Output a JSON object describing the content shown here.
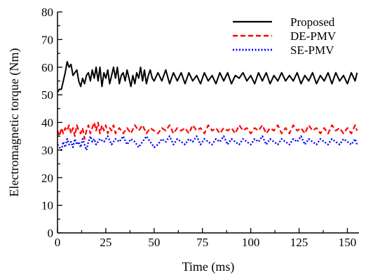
{
  "chart_data": {
    "type": "line",
    "title": "",
    "xlabel": "Time (ms)",
    "ylabel": "Electromagnetic torque (Nm)",
    "xlim": [
      0,
      156
    ],
    "ylim": [
      0,
      80
    ],
    "x_ticks": [
      "0",
      "25",
      "50",
      "75",
      "100",
      "125",
      "150"
    ],
    "y_ticks": [
      "0",
      "10",
      "20",
      "30",
      "40",
      "50",
      "60",
      "70",
      "80"
    ],
    "grid": false,
    "legend_position": "top-right",
    "series": [
      {
        "name": "Proposed",
        "color": "#000000",
        "line_style": "solid",
        "x": [
          0,
          1,
          2,
          3,
          4,
          5,
          6,
          7,
          8,
          9,
          10,
          11,
          12,
          13,
          14,
          15,
          16,
          17,
          18,
          19,
          20,
          21,
          22,
          23,
          24,
          25,
          26,
          27,
          28,
          29,
          30,
          31,
          32,
          33,
          34,
          35,
          36,
          37,
          38,
          39,
          40,
          41,
          42,
          43,
          44,
          45,
          46,
          47,
          48,
          49,
          50,
          52,
          54,
          56,
          58,
          60,
          62,
          64,
          66,
          68,
          70,
          72,
          74,
          76,
          78,
          80,
          82,
          84,
          86,
          88,
          90,
          92,
          94,
          96,
          98,
          100,
          102,
          104,
          106,
          108,
          110,
          112,
          114,
          116,
          118,
          120,
          122,
          124,
          126,
          128,
          130,
          132,
          134,
          136,
          138,
          140,
          142,
          144,
          146,
          148,
          150,
          152,
          154,
          155
        ],
        "y": [
          51,
          52,
          52,
          55,
          58,
          62,
          60,
          61,
          57,
          58,
          59,
          55,
          53,
          56,
          54,
          57,
          58,
          55,
          59,
          56,
          60,
          55,
          60,
          53,
          58,
          56,
          59,
          54,
          57,
          60,
          56,
          60,
          54,
          57,
          58,
          55,
          59,
          56,
          53,
          57,
          54,
          58,
          56,
          60,
          55,
          59,
          54,
          57,
          59,
          56,
          55,
          58,
          55,
          59,
          54,
          58,
          55,
          58,
          54,
          58,
          55,
          57,
          54,
          58,
          55,
          57,
          54,
          58,
          55,
          58,
          54,
          57,
          56,
          58,
          55,
          57,
          54,
          58,
          55,
          58,
          54,
          57,
          55,
          58,
          55,
          57,
          55,
          58,
          54,
          57,
          55,
          58,
          54,
          57,
          55,
          58,
          54,
          58,
          55,
          57,
          54,
          58,
          55,
          58
        ]
      },
      {
        "name": "DE-PMV",
        "color": "#ff0000",
        "line_style": "dashed",
        "x": [
          0,
          1,
          2,
          3,
          4,
          5,
          6,
          7,
          8,
          9,
          10,
          11,
          12,
          13,
          14,
          15,
          16,
          17,
          18,
          19,
          20,
          21,
          22,
          23,
          24,
          25,
          26,
          27,
          28,
          29,
          30,
          32,
          34,
          36,
          38,
          40,
          42,
          44,
          46,
          48,
          50,
          52,
          54,
          56,
          58,
          60,
          62,
          64,
          66,
          68,
          70,
          72,
          74,
          76,
          78,
          80,
          82,
          84,
          86,
          88,
          90,
          92,
          94,
          96,
          98,
          100,
          102,
          104,
          106,
          108,
          110,
          112,
          114,
          116,
          118,
          120,
          122,
          124,
          126,
          128,
          130,
          132,
          134,
          136,
          138,
          140,
          142,
          144,
          146,
          148,
          150,
          152,
          154,
          155
        ],
        "y": [
          37,
          35,
          38,
          36,
          38,
          37,
          39,
          36,
          38,
          35,
          39,
          37,
          36,
          38,
          34,
          37,
          39,
          36,
          38,
          40,
          37,
          40,
          36,
          39,
          37,
          39,
          36,
          38,
          37,
          39,
          36,
          38,
          36,
          38,
          36,
          39,
          37,
          39,
          36,
          38,
          37,
          36,
          38,
          37,
          39,
          36,
          38,
          37,
          38,
          36,
          39,
          37,
          38,
          36,
          39,
          37,
          38,
          36,
          38,
          37,
          38,
          36,
          39,
          37,
          38,
          36,
          38,
          37,
          39,
          36,
          38,
          37,
          39,
          36,
          38,
          36,
          39,
          37,
          38,
          36,
          39,
          37,
          38,
          36,
          38,
          36,
          39,
          37,
          38,
          36,
          38,
          36,
          39,
          37
        ]
      },
      {
        "name": "SE-PMV",
        "color": "#0000ff",
        "line_style": "dotted",
        "x": [
          0,
          1,
          2,
          3,
          4,
          5,
          6,
          7,
          8,
          9,
          10,
          11,
          12,
          13,
          14,
          15,
          16,
          17,
          18,
          19,
          20,
          22,
          24,
          26,
          28,
          30,
          32,
          34,
          36,
          38,
          40,
          42,
          44,
          46,
          48,
          50,
          52,
          54,
          56,
          58,
          60,
          62,
          64,
          66,
          68,
          70,
          72,
          74,
          76,
          78,
          80,
          82,
          84,
          86,
          88,
          90,
          92,
          94,
          96,
          98,
          100,
          102,
          104,
          106,
          108,
          110,
          112,
          114,
          116,
          118,
          120,
          122,
          124,
          126,
          128,
          130,
          132,
          134,
          136,
          138,
          140,
          142,
          144,
          146,
          148,
          150,
          152,
          154,
          155
        ],
        "y": [
          32,
          31,
          30,
          33,
          31,
          34,
          32,
          33,
          31,
          34,
          32,
          33,
          31,
          34,
          32,
          30,
          33,
          35,
          33,
          34,
          32,
          34,
          33,
          35,
          32,
          34,
          33,
          35,
          32,
          34,
          33,
          31,
          33,
          35,
          33,
          31,
          32,
          34,
          33,
          35,
          32,
          34,
          33,
          32,
          34,
          33,
          35,
          32,
          34,
          33,
          32,
          34,
          33,
          35,
          32,
          34,
          33,
          32,
          34,
          33,
          32,
          34,
          33,
          35,
          32,
          34,
          33,
          32,
          34,
          33,
          32,
          34,
          33,
          35,
          32,
          34,
          33,
          32,
          34,
          33,
          32,
          34,
          33,
          32,
          34,
          33,
          32,
          34,
          32
        ]
      }
    ]
  }
}
